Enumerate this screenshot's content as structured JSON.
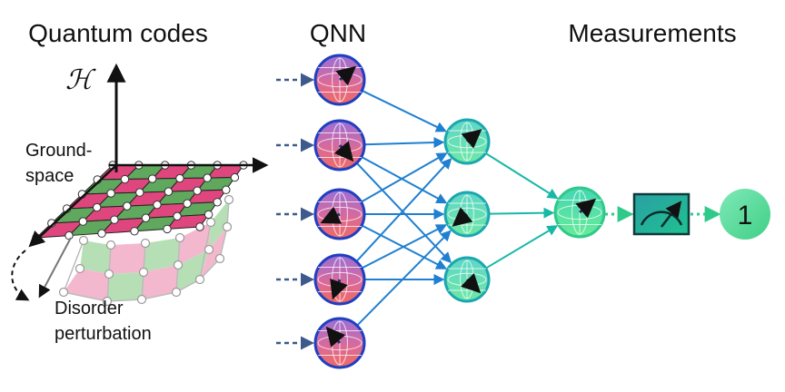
{
  "titles": {
    "left": "Quantum codes",
    "middle": "QNN",
    "right": "Measurements"
  },
  "annotations": {
    "hilbert": "ℋ",
    "ground_line1": "Ground-",
    "ground_line2": "space",
    "disorder_line1": "Disorder",
    "disorder_line2": "perturbation"
  },
  "output": {
    "value": "1"
  },
  "colors": {
    "ground_pink": "#e0467e",
    "ground_green": "#5fa85d",
    "pert_pink": "#f4b8ce",
    "pert_green": "#b7dfb6",
    "input_ring": "#1f3fbf",
    "hidden_ring": "#1aa7b0",
    "output_ring": "#2fc98a",
    "edge_blue": "#1f7fd0",
    "edge_teal": "#17b8a8",
    "meter_fill": "#1aa09a",
    "result_fill": "#5fe0a0"
  },
  "network": {
    "layers": [
      5,
      3,
      1
    ],
    "input_nodes": [
      "input-node-1",
      "input-node-2",
      "input-node-3",
      "input-node-4",
      "input-node-5"
    ],
    "hidden_nodes": [
      "hidden-node-1",
      "hidden-node-2",
      "hidden-node-3"
    ],
    "output_nodes": [
      "output-node-1"
    ],
    "icons": [
      "bloch-sphere-icon",
      "meter-icon"
    ]
  }
}
